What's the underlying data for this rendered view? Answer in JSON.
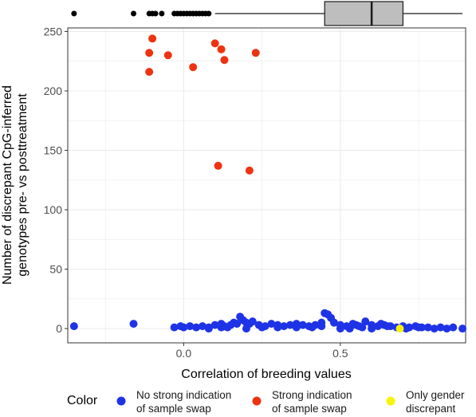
{
  "chart_data": {
    "type": "scatter",
    "xlabel": "Correlation of breeding values",
    "ylabel_lines": [
      "Number of discrepant CpG-inferred",
      "genotypes pre- vs posttreatment"
    ],
    "xlim": [
      -0.37,
      0.9
    ],
    "ylim": [
      -12,
      253
    ],
    "x_ticks": [
      0.0,
      0.5
    ],
    "x_tick_labels": [
      "0.0",
      "0.5"
    ],
    "y_ticks": [
      0,
      50,
      100,
      150,
      200,
      250
    ],
    "y_tick_labels": [
      "0",
      "50",
      "100",
      "150",
      "200",
      "250"
    ],
    "grid": true,
    "legend": {
      "position": "bottom",
      "title": "Color",
      "entries": [
        {
          "lines": [
            "No strong indication",
            "of sample swap"
          ],
          "color": "#1f33e6"
        },
        {
          "lines": [
            "Strong indication",
            "of sample swap"
          ],
          "color": "#ee3311"
        },
        {
          "lines": [
            "Only gender",
            "discrepant"
          ],
          "color": "#f5f50a"
        }
      ]
    },
    "boxplot_x": {
      "q1": 0.45,
      "median": 0.6,
      "q3": 0.7,
      "whisker_low": 0.1,
      "whisker_high": 0.89,
      "outliers": [
        -0.35,
        -0.16,
        -0.11,
        -0.1,
        -0.09,
        -0.07,
        -0.03,
        -0.02,
        -0.01,
        0.0,
        0.01,
        0.02,
        0.03,
        0.04,
        0.05,
        0.06,
        0.07,
        0.08
      ]
    },
    "series": [
      {
        "name": "Strong indication of sample swap",
        "color": "#ee3311",
        "x": [
          -0.1,
          -0.11,
          -0.11,
          -0.05,
          0.03,
          0.1,
          0.12,
          0.13,
          0.23,
          0.11,
          0.21
        ],
        "y": [
          244,
          232,
          216,
          230,
          220,
          240,
          235,
          226,
          232,
          137,
          133
        ]
      },
      {
        "name": "No strong indication of sample swap",
        "color": "#1f33e6",
        "x": [
          -0.35,
          -0.16,
          -0.03,
          -0.01,
          0.0,
          0.02,
          0.04,
          0.06,
          0.08,
          0.1,
          0.12,
          0.13,
          0.15,
          0.16,
          0.17,
          0.18,
          0.19,
          0.2,
          0.21,
          0.22,
          0.24,
          0.26,
          0.28,
          0.3,
          0.32,
          0.34,
          0.36,
          0.38,
          0.4,
          0.42,
          0.44,
          0.45,
          0.46,
          0.47,
          0.48,
          0.5,
          0.52,
          0.54,
          0.55,
          0.56,
          0.58,
          0.6,
          0.62,
          0.63,
          0.64,
          0.66,
          0.68,
          0.7,
          0.72,
          0.74,
          0.76,
          0.78,
          0.8,
          0.82,
          0.84,
          0.86,
          0.89,
          0.14,
          0.2,
          0.3,
          0.44,
          0.5,
          0.57,
          0.65,
          0.71,
          0.36,
          0.08,
          0.25,
          0.6,
          0.12,
          0.41,
          0.53,
          0.75
        ],
        "y": [
          2,
          4,
          1,
          2,
          1,
          2,
          1,
          2,
          1,
          3,
          4,
          2,
          3,
          5,
          4,
          10,
          7,
          5,
          4,
          6,
          3,
          2,
          4,
          3,
          2,
          3,
          4,
          3,
          2,
          3,
          5,
          13,
          12,
          9,
          5,
          3,
          2,
          4,
          3,
          2,
          6,
          3,
          2,
          4,
          3,
          2,
          1,
          2,
          1,
          2,
          1,
          1,
          0,
          1,
          0,
          1,
          0,
          1,
          0,
          1,
          2,
          0,
          1,
          2,
          0,
          1,
          0,
          1,
          0,
          1,
          1,
          0,
          1
        ]
      },
      {
        "name": "Only gender discrepant",
        "color": "#f5f50a",
        "x": [
          0.69
        ],
        "y": [
          0
        ]
      }
    ]
  }
}
